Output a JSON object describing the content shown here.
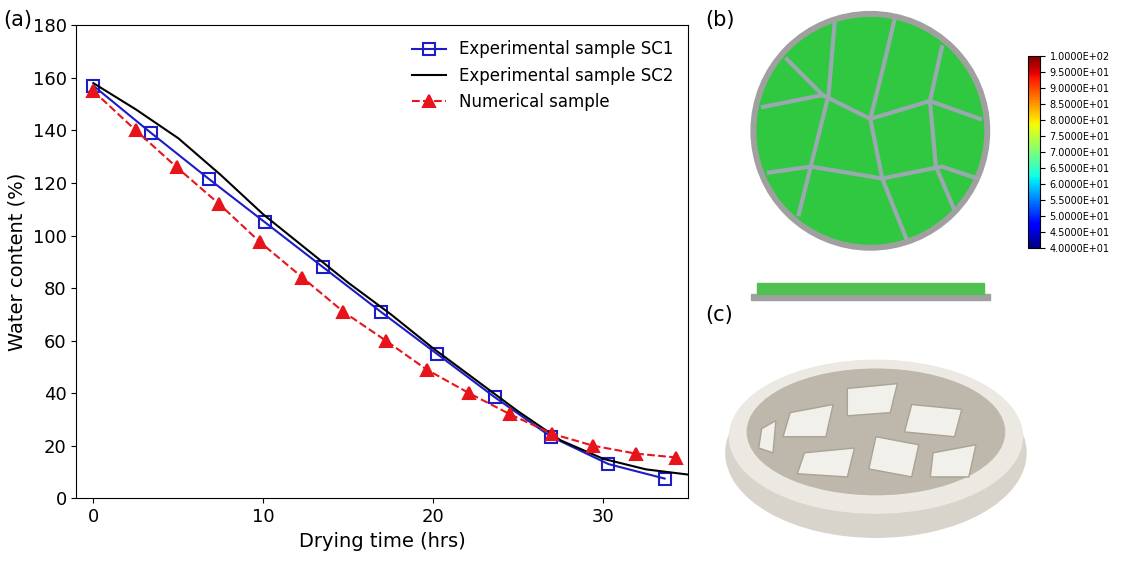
{
  "panel_labels": [
    "(a)",
    "(b)",
    "(c)"
  ],
  "chart_data": {
    "type": "line",
    "x_label": "Drying time (hrs)",
    "y_label": "Water content (%)",
    "xlim": [
      -1,
      35
    ],
    "xticks": [
      0,
      10,
      20,
      30
    ],
    "ylim": [
      0,
      180
    ],
    "yticks": [
      0,
      20,
      40,
      60,
      80,
      100,
      120,
      140,
      160,
      180
    ],
    "grid": false,
    "legend": "upper right",
    "series": [
      {
        "name": "Experimental sample SC1",
        "color": "#1c1cc8",
        "marker": "square",
        "line_style": "solid",
        "x": [
          0,
          3.4,
          6.8,
          10.1,
          13.5,
          16.9,
          20.2,
          23.6,
          26.9,
          30.3,
          33.6
        ],
        "values": [
          157,
          139,
          121.5,
          105,
          88,
          71,
          55,
          38.5,
          23.5,
          13,
          7.5
        ]
      },
      {
        "name": "Experimental sample SC2",
        "color": "#000000",
        "marker": "none",
        "line_style": "solid",
        "x": [
          0,
          2.5,
          5,
          7.5,
          10,
          12.5,
          15,
          17.5,
          20,
          22.5,
          25,
          27.5,
          30,
          32.5,
          35
        ],
        "values": [
          158,
          148,
          137,
          123,
          108,
          95,
          82,
          70,
          57,
          45,
          33,
          22,
          15,
          11,
          9
        ]
      },
      {
        "name": "Numerical sample",
        "color": "#e8141c",
        "marker": "triangle",
        "line_style": "dashed",
        "x": [
          0,
          2.5,
          4.9,
          7.4,
          9.8,
          12.3,
          14.7,
          17.2,
          19.6,
          22.1,
          24.5,
          27,
          29.4,
          31.9,
          34.3
        ],
        "values": [
          155,
          140,
          126,
          112,
          97.5,
          84,
          71,
          60,
          49,
          40,
          32,
          24.5,
          20,
          17,
          15.5
        ]
      }
    ]
  },
  "colorbar": {
    "range": [
      40,
      100
    ],
    "ticks": [
      {
        "value": 100,
        "label": "1.0000E+02"
      },
      {
        "value": 95,
        "label": "9.5000E+01"
      },
      {
        "value": 90,
        "label": "9.0000E+01"
      },
      {
        "value": 85,
        "label": "8.5000E+01"
      },
      {
        "value": 80,
        "label": "8.0000E+01"
      },
      {
        "value": 75,
        "label": "7.5000E+01"
      },
      {
        "value": 70,
        "label": "7.0000E+01"
      },
      {
        "value": 65,
        "label": "6.5000E+01"
      },
      {
        "value": 60,
        "label": "6.0000E+01"
      },
      {
        "value": 55,
        "label": "5.5000E+01"
      },
      {
        "value": 50,
        "label": "5.0000E+01"
      },
      {
        "value": 45,
        "label": "4.5000E+01"
      },
      {
        "value": 40,
        "label": "4.0000E+01"
      }
    ]
  }
}
